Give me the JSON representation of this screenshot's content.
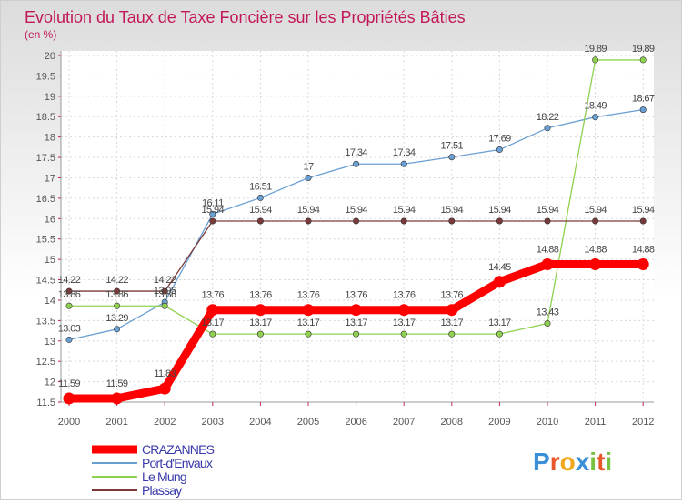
{
  "chart_data": {
    "type": "line",
    "title": "Evolution du Taux de Taxe Foncière sur les Propriétés Bâties",
    "ylabel": "(en %)",
    "xlabel": "",
    "ylim": [
      11.5,
      20
    ],
    "y_ticks": [
      "11.5",
      "12",
      "12.5",
      "13",
      "13.5",
      "14",
      "14.5",
      "15",
      "15.5",
      "16",
      "16.5",
      "17",
      "17.5",
      "18",
      "18.5",
      "19",
      "19.5",
      "20"
    ],
    "categories": [
      "2000",
      "2001",
      "2002",
      "2003",
      "2004",
      "2005",
      "2006",
      "2007",
      "2008",
      "2009",
      "2010",
      "2011",
      "2012"
    ],
    "grid": true,
    "legend_position": "bottom-left",
    "series": [
      {
        "name": "CRAZANNES",
        "color": "#ff0000",
        "values": [
          11.59,
          11.59,
          11.83,
          13.76,
          13.76,
          13.76,
          13.76,
          13.76,
          13.76,
          14.45,
          14.88,
          14.88,
          14.88
        ],
        "labels": [
          "11.59",
          "11.59",
          "11.83",
          "13.76",
          "13.76",
          "13.76",
          "13.76",
          "13.76",
          "13.76",
          "14.45",
          "14.88",
          "14.88",
          "14.88"
        ]
      },
      {
        "name": "Port-d'Envaux",
        "color": "#6a9fd4",
        "values": [
          13.03,
          13.29,
          13.95,
          16.11,
          16.51,
          17,
          17.34,
          17.34,
          17.51,
          17.69,
          18.22,
          18.49,
          18.67
        ],
        "labels": [
          "13.03",
          "13.29",
          "13.95",
          "16.11",
          "16.51",
          "17",
          "17.34",
          "17.34",
          "17.51",
          "17.69",
          "18.22",
          "18.49",
          "18.67"
        ]
      },
      {
        "name": "Le Mung",
        "color": "#8fd14f",
        "values": [
          13.86,
          13.86,
          13.86,
          13.17,
          13.17,
          13.17,
          13.17,
          13.17,
          13.17,
          13.17,
          13.43,
          19.89,
          19.89
        ],
        "labels": [
          "13.86",
          "13.86",
          "13.86",
          "13.17",
          "13.17",
          "13.17",
          "13.17",
          "13.17",
          "13.17",
          "13.17",
          "13.43",
          "19.89",
          "19.89"
        ]
      },
      {
        "name": "Plassay",
        "color": "#7a3a3a",
        "values": [
          14.22,
          14.22,
          14.22,
          15.94,
          15.94,
          15.94,
          15.94,
          15.94,
          15.94,
          15.94,
          15.94,
          15.94,
          15.94
        ],
        "labels": [
          "14.22",
          "14.22",
          "14.22",
          "15.94",
          "15.94",
          "15.94",
          "15.94",
          "15.94",
          "15.94",
          "15.94",
          "15.94",
          "15.94",
          "15.94"
        ]
      }
    ]
  },
  "branding": {
    "logo_text": "Proxiti",
    "logo_letters": [
      "P",
      "r",
      "o",
      "x",
      "i",
      "t",
      "i"
    ],
    "logo_colors": [
      "#3a8fd6",
      "#e8572a",
      "#f2a81d",
      "#3a8fd6",
      "#7ac142",
      "#e8572a",
      "#7ac142"
    ]
  }
}
